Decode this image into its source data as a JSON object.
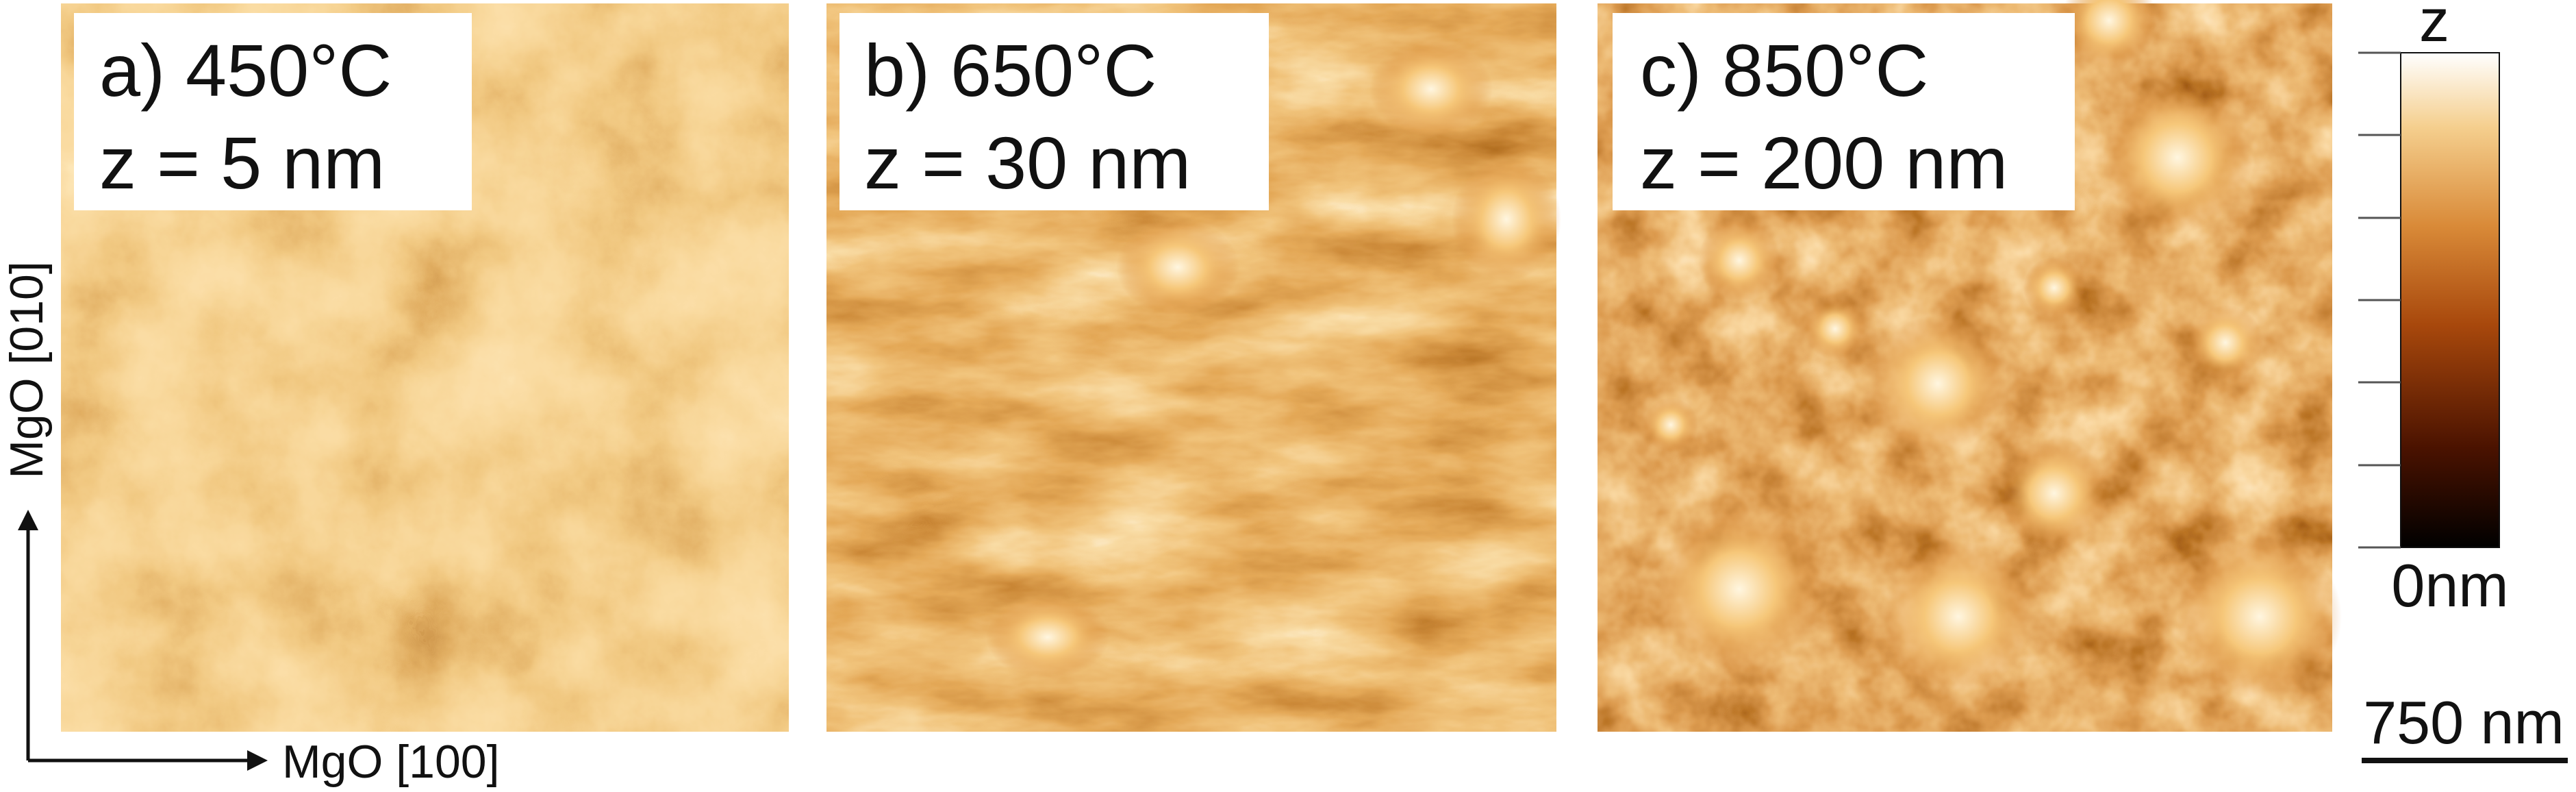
{
  "panels": [
    {
      "label": "a) 450°C",
      "z_range": "z = 5 nm"
    },
    {
      "label": "b) 650°C",
      "z_range": "z = 30 nm"
    },
    {
      "label": "c) 850°C",
      "z_range": "z = 200 nm"
    }
  ],
  "axes": {
    "x": "MgO [100]",
    "y": "MgO [010]"
  },
  "colorbar": {
    "top": "z",
    "bottom": "0nm"
  },
  "scale_bar": "750 nm"
}
